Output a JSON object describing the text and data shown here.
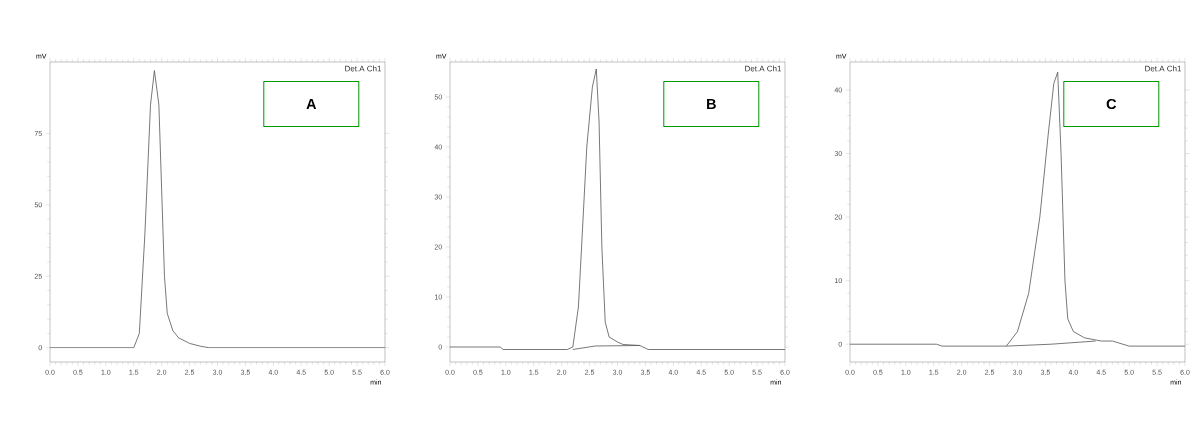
{
  "chart_data": [
    {
      "type": "line",
      "title": "A",
      "xlabel": "min",
      "ylabel": "mV",
      "annotations": [
        "Det.A Ch1"
      ],
      "xlim": [
        0,
        6
      ],
      "ylim": [
        -5,
        100
      ],
      "xticks": [
        {
          "value": 0,
          "label": "0.0"
        },
        {
          "value": 0.5,
          "label": "0.5"
        },
        {
          "value": 1,
          "label": "1.0"
        },
        {
          "value": 1.5,
          "label": "1.5"
        },
        {
          "value": 2,
          "label": "2.0"
        },
        {
          "value": 2.5,
          "label": "2.5"
        },
        {
          "value": 3,
          "label": "3.0"
        },
        {
          "value": 3.5,
          "label": "3.5"
        },
        {
          "value": 4,
          "label": "4.0"
        },
        {
          "value": 4.5,
          "label": "4.5"
        },
        {
          "value": 5,
          "label": "5.0"
        },
        {
          "value": 5.5,
          "label": "5.5"
        },
        {
          "value": 6,
          "label": "6.0"
        }
      ],
      "yticks": [
        0,
        25,
        50,
        75
      ],
      "grid": false,
      "marker": "none",
      "line_style": "solid",
      "series": [
        {
          "color": "#555555",
          "x": [
            0,
            1.5,
            1.6,
            1.7,
            1.8,
            1.87,
            1.95,
            2.0,
            2.05,
            2.1,
            2.2,
            2.3,
            2.5,
            2.7,
            2.85,
            6
          ],
          "values": [
            0,
            0,
            5,
            40,
            85,
            97,
            85,
            55,
            25,
            12,
            6,
            3.5,
            1.5,
            0.5,
            0,
            0
          ]
        }
      ]
    },
    {
      "type": "line",
      "title": "B",
      "xlabel": "min",
      "ylabel": "mV",
      "annotations": [
        "Det.A Ch1"
      ],
      "xlim": [
        0,
        6
      ],
      "ylim": [
        -3,
        57
      ],
      "xticks": [
        {
          "value": 0,
          "label": "0.0"
        },
        {
          "value": 0.5,
          "label": "0.5"
        },
        {
          "value": 1,
          "label": "1.0"
        },
        {
          "value": 1.5,
          "label": "1.5"
        },
        {
          "value": 2,
          "label": "2.0"
        },
        {
          "value": 2.5,
          "label": "2.5"
        },
        {
          "value": 3,
          "label": "3.0"
        },
        {
          "value": 3.5,
          "label": "3.5"
        },
        {
          "value": 4,
          "label": "4.0"
        },
        {
          "value": 4.5,
          "label": "4.5"
        },
        {
          "value": 5,
          "label": "5.0"
        },
        {
          "value": 5.5,
          "label": "5.5"
        },
        {
          "value": 6,
          "label": "6.0"
        }
      ],
      "yticks": [
        0,
        10,
        20,
        30,
        40,
        50
      ],
      "grid": false,
      "marker": "none",
      "line_style": "solid",
      "series": [
        {
          "color": "#555555",
          "x": [
            0,
            0.9,
            0.95,
            2.1,
            2.2,
            2.3,
            2.38,
            2.45,
            2.55,
            2.62,
            2.67,
            2.72,
            2.78,
            2.85,
            3.0,
            3.1,
            3.4,
            3.55,
            6
          ],
          "values": [
            0,
            0,
            -0.5,
            -0.5,
            0,
            8,
            25,
            40,
            52,
            55.6,
            45,
            20,
            5,
            2,
            1,
            0.5,
            0.3,
            -0.5,
            -0.5
          ]
        },
        {
          "color": "#555555",
          "x": [
            2.2,
            2.6,
            3.4
          ],
          "values": [
            -0.5,
            0.2,
            0.3
          ]
        }
      ]
    },
    {
      "type": "line",
      "title": "C",
      "xlabel": "min",
      "ylabel": "mV",
      "annotations": [
        "Det.A Ch1"
      ],
      "xlim": [
        0,
        6
      ],
      "ylim": [
        -2.8,
        44.4
      ],
      "xticks": [
        {
          "value": 0,
          "label": "0.0"
        },
        {
          "value": 0.5,
          "label": "0.5"
        },
        {
          "value": 1,
          "label": "1.0"
        },
        {
          "value": 1.5,
          "label": "1.5"
        },
        {
          "value": 2,
          "label": "2.0"
        },
        {
          "value": 2.5,
          "label": "2.5"
        },
        {
          "value": 3,
          "label": "3.0"
        },
        {
          "value": 3.5,
          "label": "3.5"
        },
        {
          "value": 4,
          "label": "4.0"
        },
        {
          "value": 4.5,
          "label": "4.5"
        },
        {
          "value": 5,
          "label": "5.0"
        },
        {
          "value": 5.5,
          "label": "5.5"
        },
        {
          "value": 6,
          "label": "6.0"
        }
      ],
      "yticks": [
        0,
        10,
        20,
        30,
        40
      ],
      "grid": false,
      "marker": "none",
      "line_style": "solid",
      "series": [
        {
          "color": "#555555",
          "x": [
            0,
            1.55,
            1.65,
            2.8,
            3.0,
            3.2,
            3.4,
            3.55,
            3.65,
            3.72,
            3.78,
            3.85,
            3.9,
            4.0,
            4.2,
            4.5,
            4.7,
            5.0,
            6
          ],
          "values": [
            0,
            0,
            -0.3,
            -0.3,
            2,
            8,
            20,
            33,
            41,
            42.8,
            30,
            10,
            4,
            2,
            1,
            0.5,
            0.5,
            -0.3,
            -0.3
          ]
        },
        {
          "color": "#555555",
          "x": [
            2.8,
            3.6,
            4.4
          ],
          "values": [
            -0.3,
            0,
            0.5
          ]
        }
      ]
    }
  ]
}
